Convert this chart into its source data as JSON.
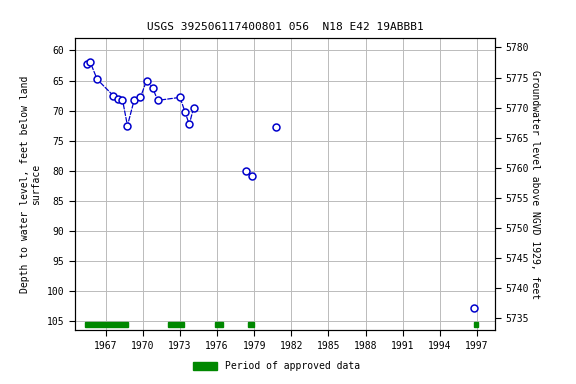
{
  "title": "USGS 392506117400801 056  N18 E42 19ABBB1",
  "ylabel_left": "Depth to water level, feet below land\nsurface",
  "ylabel_right": "Groundwater level above NGVD 1929, feet",
  "xlim": [
    1964.5,
    1998.5
  ],
  "ylim_left": [
    106.5,
    58.0
  ],
  "ylim_right": [
    5733.0,
    5781.5
  ],
  "xticks": [
    1967,
    1970,
    1973,
    1976,
    1979,
    1982,
    1985,
    1988,
    1991,
    1994,
    1997
  ],
  "yticks_left": [
    60,
    65,
    70,
    75,
    80,
    85,
    90,
    95,
    100,
    105
  ],
  "yticks_right": [
    5735,
    5740,
    5745,
    5750,
    5755,
    5760,
    5765,
    5770,
    5775,
    5780
  ],
  "data_points": [
    [
      1965.5,
      62.3
    ],
    [
      1965.75,
      62.0
    ],
    [
      1966.3,
      64.8
    ],
    [
      1967.6,
      67.5
    ],
    [
      1968.0,
      68.0
    ],
    [
      1968.35,
      68.2
    ],
    [
      1968.75,
      72.5
    ],
    [
      1969.3,
      68.2
    ],
    [
      1969.8,
      67.8
    ],
    [
      1970.3,
      65.0
    ],
    [
      1970.8,
      66.3
    ],
    [
      1971.2,
      68.3
    ],
    [
      1973.0,
      67.8
    ],
    [
      1973.4,
      70.2
    ],
    [
      1973.75,
      72.3
    ],
    [
      1974.1,
      69.5
    ],
    [
      1978.3,
      80.0
    ],
    [
      1978.8,
      80.8
    ],
    [
      1980.8,
      72.8
    ],
    [
      1996.8,
      102.8
    ]
  ],
  "connected_segment_indices": [
    0,
    1,
    2,
    3,
    4,
    5,
    6,
    7,
    8,
    9,
    10,
    11,
    12,
    13,
    14,
    15
  ],
  "green_bars": [
    [
      1965.3,
      1968.8
    ],
    [
      1972.0,
      1973.3
    ],
    [
      1975.8,
      1976.5
    ],
    [
      1978.5,
      1979.0
    ],
    [
      1996.75,
      1997.1
    ]
  ],
  "green_bar_y_center": 105.5,
  "green_bar_height": 0.9,
  "point_color": "#0000cc",
  "line_color": "#0000cc",
  "green_color": "#008800",
  "legend_label": "Period of approved data",
  "background_color": "#ffffff",
  "grid_color": "#bbbbbb"
}
